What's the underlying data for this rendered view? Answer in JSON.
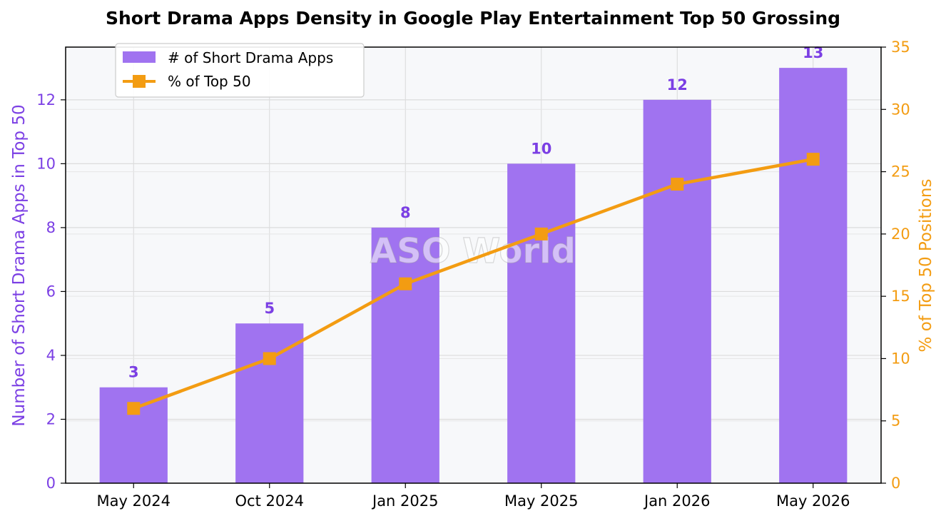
{
  "chart_data": {
    "type": "bar",
    "title": "Short Drama Apps Density in Google Play Entertainment Top 50 Grossing",
    "categories": [
      "May 2024",
      "Oct 2024",
      "Jan 2025",
      "May 2025",
      "Jan 2026",
      "May 2026"
    ],
    "series": [
      {
        "name": "# of Short Drama Apps",
        "type": "bar",
        "axis": "left",
        "values": [
          3,
          5,
          8,
          10,
          12,
          13
        ],
        "color": "#a073f0",
        "label_color": "#7b3fe4"
      },
      {
        "name": "% of Top 50",
        "type": "line",
        "axis": "right",
        "marker": "square",
        "values": [
          6,
          10,
          16,
          20,
          24,
          26
        ],
        "color": "#f39c12"
      }
    ],
    "ylabel": "Number of Short Drama Apps in Top 50",
    "ylabel_right": "% of Top 50 Positions",
    "ylim": [
      0,
      13.65
    ],
    "ylim_right": [
      0,
      35
    ],
    "yticks": [
      0,
      2,
      4,
      6,
      8,
      10,
      12
    ],
    "yticks_right": [
      0,
      5,
      10,
      15,
      20,
      25,
      30,
      35
    ],
    "grid": true,
    "legend_position": "top-left",
    "left_axis_color": "#7b3fe4",
    "right_axis_color": "#f39c12",
    "plot_background": "#f7f8fa",
    "watermark": "ASO World"
  }
}
